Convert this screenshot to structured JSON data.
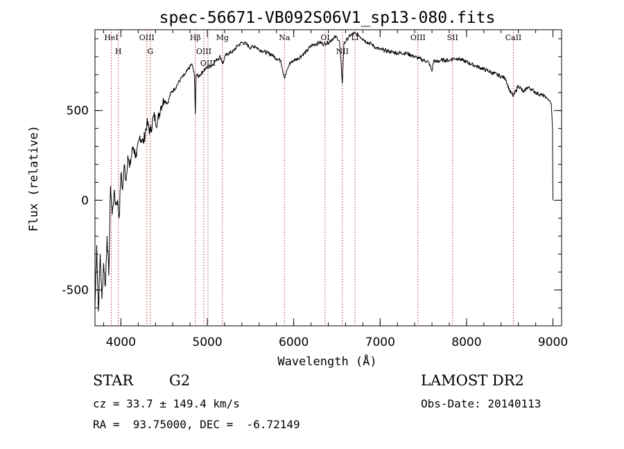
{
  "chart_data": {
    "type": "line",
    "title": "spec-56671-VB092S06V1_sp13-080.fits",
    "xlabel": "Wavelength (Å)",
    "ylabel": "Flux (relative)",
    "xlim": [
      3700,
      9100
    ],
    "ylim": [
      -700,
      950
    ],
    "xticks": [
      4000,
      5000,
      6000,
      7000,
      8000,
      9000
    ],
    "yticks": [
      -500,
      0,
      500
    ],
    "x_minor_step": 200,
    "y_minor_step": 100,
    "series": [
      {
        "name": "flux",
        "points": [
          [
            3700,
            -600
          ],
          [
            3720,
            -250
          ],
          [
            3740,
            -620
          ],
          [
            3760,
            -300
          ],
          [
            3780,
            -550
          ],
          [
            3800,
            -350
          ],
          [
            3820,
            -480
          ],
          [
            3840,
            -200
          ],
          [
            3860,
            -420
          ],
          [
            3880,
            80
          ],
          [
            3900,
            -80
          ],
          [
            3920,
            40
          ],
          [
            3940,
            -20
          ],
          [
            3960,
            0
          ],
          [
            3980,
            -100
          ],
          [
            4000,
            150
          ],
          [
            4020,
            60
          ],
          [
            4040,
            200
          ],
          [
            4060,
            110
          ],
          [
            4080,
            250
          ],
          [
            4100,
            180
          ],
          [
            4140,
            300
          ],
          [
            4180,
            240
          ],
          [
            4220,
            360
          ],
          [
            4260,
            320
          ],
          [
            4300,
            430
          ],
          [
            4340,
            380
          ],
          [
            4380,
            470
          ],
          [
            4420,
            430
          ],
          [
            4460,
            520
          ],
          [
            4500,
            560
          ],
          [
            4540,
            540
          ],
          [
            4580,
            600
          ],
          [
            4620,
            620
          ],
          [
            4660,
            650
          ],
          [
            4700,
            680
          ],
          [
            4740,
            700
          ],
          [
            4780,
            730
          ],
          [
            4820,
            760
          ],
          [
            4850,
            700
          ],
          [
            4861,
            480
          ],
          [
            4870,
            700
          ],
          [
            4900,
            690
          ],
          [
            4950,
            720
          ],
          [
            5000,
            740
          ],
          [
            5050,
            750
          ],
          [
            5100,
            780
          ],
          [
            5150,
            800
          ],
          [
            5183,
            760
          ],
          [
            5200,
            800
          ],
          [
            5250,
            820
          ],
          [
            5300,
            830
          ],
          [
            5350,
            860
          ],
          [
            5400,
            880
          ],
          [
            5450,
            870
          ],
          [
            5500,
            850
          ],
          [
            5550,
            860
          ],
          [
            5600,
            840
          ],
          [
            5650,
            830
          ],
          [
            5700,
            820
          ],
          [
            5750,
            810
          ],
          [
            5800,
            790
          ],
          [
            5850,
            780
          ],
          [
            5893,
            680
          ],
          [
            5950,
            760
          ],
          [
            6000,
            780
          ],
          [
            6050,
            790
          ],
          [
            6100,
            810
          ],
          [
            6150,
            830
          ],
          [
            6200,
            860
          ],
          [
            6250,
            870
          ],
          [
            6300,
            880
          ],
          [
            6350,
            870
          ],
          [
            6400,
            880
          ],
          [
            6450,
            900
          ],
          [
            6500,
            910
          ],
          [
            6530,
            880
          ],
          [
            6563,
            650
          ],
          [
            6580,
            870
          ],
          [
            6620,
            900
          ],
          [
            6660,
            920
          ],
          [
            6700,
            930
          ],
          [
            6750,
            920
          ],
          [
            6800,
            900
          ],
          [
            6850,
            880
          ],
          [
            6900,
            870
          ],
          [
            6950,
            850
          ],
          [
            7000,
            840
          ],
          [
            7100,
            830
          ],
          [
            7200,
            820
          ],
          [
            7300,
            820
          ],
          [
            7400,
            800
          ],
          [
            7450,
            790
          ],
          [
            7500,
            780
          ],
          [
            7560,
            770
          ],
          [
            7600,
            720
          ],
          [
            7620,
            780
          ],
          [
            7650,
            770
          ],
          [
            7700,
            780
          ],
          [
            7800,
            780
          ],
          [
            7850,
            790
          ],
          [
            7900,
            790
          ],
          [
            7950,
            780
          ],
          [
            8000,
            770
          ],
          [
            8100,
            750
          ],
          [
            8200,
            730
          ],
          [
            8300,
            710
          ],
          [
            8400,
            690
          ],
          [
            8450,
            680
          ],
          [
            8498,
            610
          ],
          [
            8542,
            580
          ],
          [
            8600,
            640
          ],
          [
            8662,
            600
          ],
          [
            8700,
            630
          ],
          [
            8750,
            620
          ],
          [
            8800,
            600
          ],
          [
            8850,
            590
          ],
          [
            8900,
            580
          ],
          [
            8950,
            560
          ],
          [
            8980,
            540
          ],
          [
            8995,
            400
          ],
          [
            9000,
            0
          ]
        ]
      }
    ],
    "lines": [
      {
        "label": "HeI",
        "wavelength": 3889
      },
      {
        "label": "H",
        "wavelength": 3970
      },
      {
        "label": "OIII",
        "wavelength": 4300
      },
      {
        "label": "G",
        "wavelength": 4340
      },
      {
        "label": "Hβ",
        "wavelength": 4861
      },
      {
        "label": "OIII",
        "wavelength": 4959
      },
      {
        "label": "OIII",
        "wavelength": 5007
      },
      {
        "label": "Mg",
        "wavelength": 5175
      },
      {
        "label": "Na",
        "wavelength": 5893
      },
      {
        "label": "OI",
        "wavelength": 6364
      },
      {
        "label": "NII",
        "wavelength": 6563
      },
      {
        "label": "Li",
        "wavelength": 6708
      },
      {
        "label": "OIII",
        "wavelength": 7438
      },
      {
        "label": "SII",
        "wavelength": 7838
      },
      {
        "label": "CaII",
        "wavelength": 8542
      }
    ]
  },
  "info": {
    "class": "STAR",
    "subclass": "G2",
    "survey": "LAMOST DR2",
    "cz": "cz = 33.7 ± 149.4 km/s",
    "obs_date": "Obs-Date: 20140113",
    "coords": "RA =  93.75000, DEC =  -6.72149"
  },
  "colors": {
    "line": "#000000",
    "marker": "#b03030"
  }
}
